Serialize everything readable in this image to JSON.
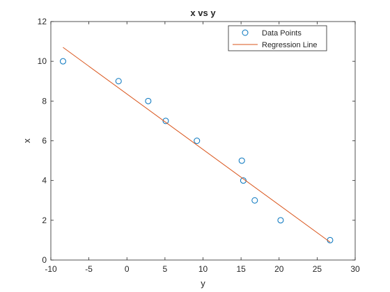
{
  "chart_data": {
    "type": "scatter",
    "title": "x vs y",
    "xlabel": "y",
    "ylabel": "x",
    "xlim": [
      -10,
      30
    ],
    "ylim": [
      0,
      12
    ],
    "xticks": [
      -10,
      -5,
      0,
      5,
      10,
      15,
      20,
      25,
      30
    ],
    "yticks": [
      0,
      2,
      4,
      6,
      8,
      10,
      12
    ],
    "grid": false,
    "legend_position": "top-right",
    "series": [
      {
        "name": "Data Points",
        "kind": "scatter",
        "marker": "open-circle",
        "color": "#0072BD",
        "x": [
          -8.4,
          -1.1,
          2.8,
          5.1,
          9.2,
          15.1,
          15.3,
          16.8,
          20.2,
          26.7
        ],
        "y": [
          10,
          9,
          8,
          7,
          6,
          5,
          4,
          3,
          2,
          1
        ]
      },
      {
        "name": "Regression Line",
        "kind": "line",
        "color": "#D95319",
        "x": [
          -8.4,
          26.7
        ],
        "y": [
          10.7,
          0.9
        ]
      }
    ]
  }
}
